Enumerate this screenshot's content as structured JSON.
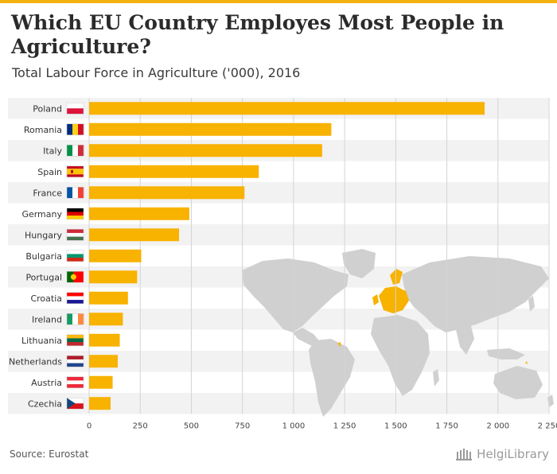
{
  "title": "Which EU Country Employes Most People in Agriculture?",
  "subtitle": "Total Labour Force in Agriculture ('000), 2016",
  "source": "Source: Eurostat",
  "logo": {
    "text": "HelgiLibrary",
    "icon": "library-building-icon"
  },
  "colors": {
    "bar": "#f8b200",
    "band": "#f2f2f2",
    "grid": "#d4d4d4",
    "map": "#d0d0d0",
    "map_highlight": "#f8b200",
    "accent": "#f5b111"
  },
  "chart_data": {
    "type": "bar",
    "orientation": "horizontal",
    "title": "Which EU Country Employes Most People in Agriculture?",
    "subtitle": "Total Labour Force in Agriculture ('000), 2016",
    "xlabel": "",
    "ylabel": "",
    "xlim": [
      0,
      2250
    ],
    "grid": true,
    "categories": [
      "Poland",
      "Romania",
      "Italy",
      "Spain",
      "France",
      "Germany",
      "Hungary",
      "Bulgaria",
      "Portugal",
      "Croatia",
      "Ireland",
      "Lithuania",
      "Netherlands",
      "Austria",
      "Czechia"
    ],
    "values": [
      1935,
      1185,
      1140,
      830,
      760,
      490,
      440,
      255,
      235,
      190,
      165,
      150,
      140,
      115,
      105
    ],
    "x_ticks": [
      0,
      250,
      500,
      750,
      1000,
      1250,
      1500,
      1750,
      2000,
      2250
    ],
    "x_tick_labels": [
      "0",
      "250",
      "500",
      "750",
      "1 000",
      "1 250",
      "1 500",
      "1 750",
      "2 000",
      "2 250"
    ],
    "flags": [
      {
        "country": "Poland",
        "type": "h",
        "colors": [
          "#ffffff",
          "#dc143c"
        ]
      },
      {
        "country": "Romania",
        "type": "v",
        "colors": [
          "#002b7f",
          "#fcd116",
          "#ce1126"
        ]
      },
      {
        "country": "Italy",
        "type": "v",
        "colors": [
          "#009246",
          "#ffffff",
          "#ce2b37"
        ]
      },
      {
        "country": "Spain",
        "type": "es",
        "colors": [
          "#c60b1e",
          "#ffc400",
          "#c60b1e"
        ]
      },
      {
        "country": "France",
        "type": "v",
        "colors": [
          "#0055a4",
          "#ffffff",
          "#ef4135"
        ]
      },
      {
        "country": "Germany",
        "type": "h",
        "colors": [
          "#000000",
          "#dd0000",
          "#ffce00"
        ]
      },
      {
        "country": "Hungary",
        "type": "h",
        "colors": [
          "#ce2939",
          "#ffffff",
          "#477050"
        ]
      },
      {
        "country": "Bulgaria",
        "type": "h",
        "colors": [
          "#ffffff",
          "#00966e",
          "#d62612"
        ]
      },
      {
        "country": "Portugal",
        "type": "pt",
        "colors": [
          "#006600",
          "#ff0000"
        ]
      },
      {
        "country": "Croatia",
        "type": "h",
        "colors": [
          "#ff0000",
          "#ffffff",
          "#171796"
        ]
      },
      {
        "country": "Ireland",
        "type": "v",
        "colors": [
          "#169b62",
          "#ffffff",
          "#ff883e"
        ]
      },
      {
        "country": "Lithuania",
        "type": "h",
        "colors": [
          "#fdb913",
          "#006a44",
          "#c1272d"
        ]
      },
      {
        "country": "Netherlands",
        "type": "h",
        "colors": [
          "#ae1c28",
          "#ffffff",
          "#21468b"
        ]
      },
      {
        "country": "Austria",
        "type": "h",
        "colors": [
          "#ed2939",
          "#ffffff",
          "#ed2939"
        ]
      },
      {
        "country": "Czechia",
        "type": "cz",
        "colors": [
          "#ffffff",
          "#d7141a",
          "#11457e"
        ]
      }
    ]
  }
}
